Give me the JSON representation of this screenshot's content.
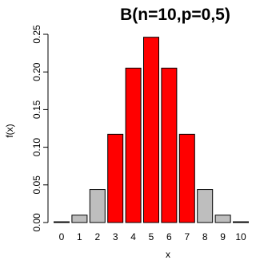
{
  "chart_data": {
    "type": "bar",
    "title": "B(n=10,p=0,5)",
    "xlabel": "x",
    "ylabel": "f(x)",
    "categories": [
      "0",
      "1",
      "2",
      "3",
      "4",
      "5",
      "6",
      "7",
      "8",
      "9",
      "10"
    ],
    "values": [
      0.001,
      0.0098,
      0.0439,
      0.1172,
      0.2051,
      0.2461,
      0.2051,
      0.1172,
      0.0439,
      0.0098,
      0.001
    ],
    "bar_colors": [
      "#bebebe",
      "#bebebe",
      "#bebebe",
      "#ff0000",
      "#ff0000",
      "#ff0000",
      "#ff0000",
      "#ff0000",
      "#bebebe",
      "#bebebe",
      "#bebebe"
    ],
    "ylim": [
      0,
      0.25
    ],
    "yticks": [
      "0.00",
      "0.05",
      "0.10",
      "0.15",
      "0.20",
      "0.25"
    ],
    "grid": false,
    "legend": "none"
  }
}
